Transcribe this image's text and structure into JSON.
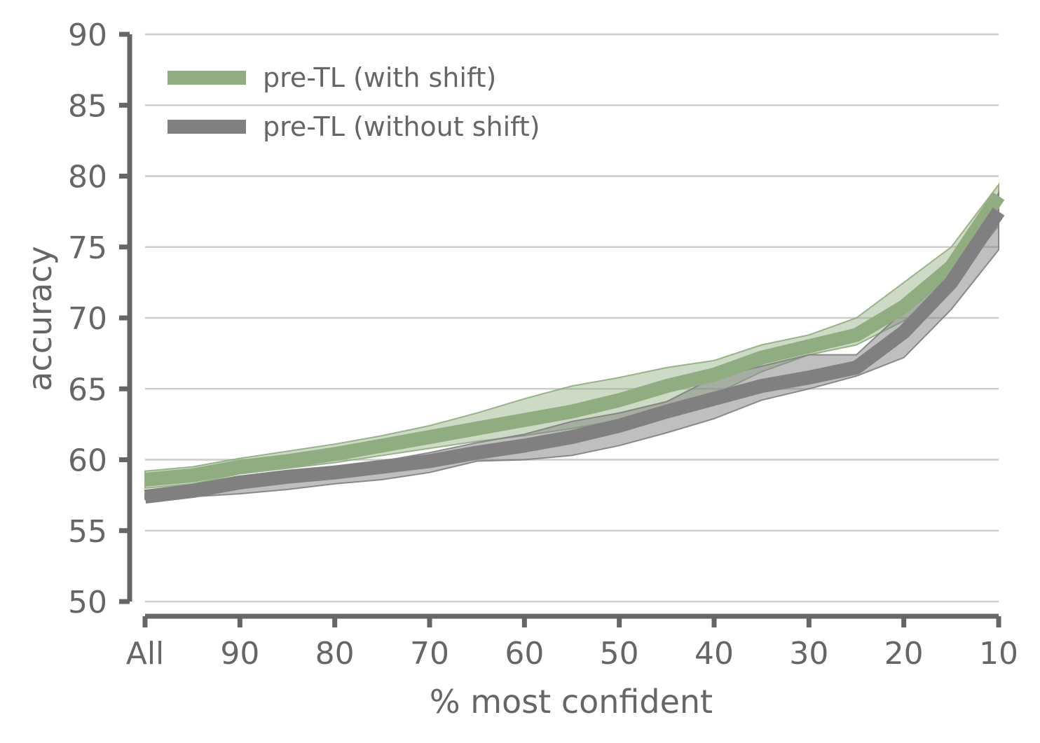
{
  "chart_data": {
    "type": "line",
    "title": "",
    "xlabel": "% most confident",
    "ylabel": "accuracy",
    "x_ticks": [
      "All",
      "90",
      "80",
      "70",
      "60",
      "50",
      "40",
      "30",
      "20",
      "10"
    ],
    "x": [
      100,
      95,
      90,
      85,
      80,
      75,
      70,
      65,
      60,
      55,
      50,
      45,
      40,
      35,
      30,
      25,
      20,
      15,
      10
    ],
    "xlim": [
      100,
      10
    ],
    "y_ticks": [
      50,
      55,
      60,
      65,
      70,
      75,
      80,
      85,
      90
    ],
    "ylim": [
      50,
      90
    ],
    "grid": "horizontal",
    "legend_position": "top-left",
    "series": [
      {
        "name": "pre-TL (with shift)",
        "color": "#8fad80",
        "values": [
          58.6,
          58.9,
          59.5,
          59.9,
          60.4,
          61.0,
          61.6,
          62.2,
          62.8,
          63.4,
          64.2,
          65.2,
          66.0,
          67.2,
          68.0,
          68.8,
          70.8,
          73.6,
          78.6
        ],
        "lower": [
          58.0,
          58.3,
          59.0,
          59.4,
          59.8,
          60.3,
          60.8,
          61.3,
          61.7,
          62.2,
          62.8,
          63.5,
          64.6,
          66.2,
          67.4,
          68.1,
          69.8,
          72.3,
          76.5
        ],
        "upper": [
          59.2,
          59.5,
          60.1,
          60.6,
          61.1,
          61.7,
          62.4,
          63.3,
          64.3,
          65.2,
          65.8,
          66.5,
          67.0,
          68.1,
          68.8,
          70.0,
          72.5,
          75.0,
          79.4
        ]
      },
      {
        "name": "pre-TL (without shift)",
        "color": "#808080",
        "values": [
          57.4,
          57.8,
          58.4,
          58.8,
          59.1,
          59.5,
          59.9,
          60.5,
          61.0,
          61.6,
          62.4,
          63.4,
          64.3,
          65.2,
          65.8,
          66.5,
          69.0,
          72.5,
          77.5
        ],
        "lower": [
          57.2,
          57.4,
          57.6,
          57.9,
          58.3,
          58.6,
          59.1,
          59.9,
          60.0,
          60.3,
          61.0,
          61.9,
          62.9,
          64.2,
          65.0,
          65.9,
          67.2,
          70.6,
          74.8
        ],
        "upper": [
          57.6,
          58.1,
          58.7,
          59.1,
          59.5,
          59.9,
          60.5,
          61.2,
          61.8,
          62.7,
          63.3,
          64.1,
          65.8,
          66.6,
          67.4,
          67.4,
          70.5,
          73.8,
          78.8
        ]
      }
    ]
  }
}
